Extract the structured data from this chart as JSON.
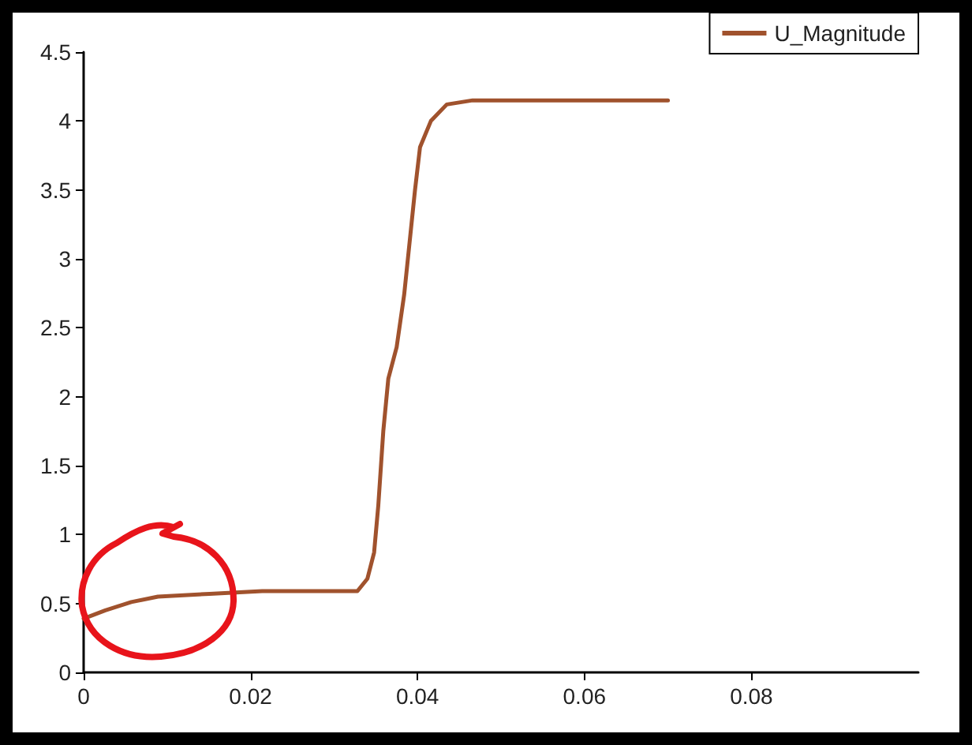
{
  "chart_data": {
    "type": "line",
    "x": [
      0,
      0.0026,
      0.0057,
      0.0089,
      0.0151,
      0.0214,
      0.0328,
      0.034,
      0.0348,
      0.0353,
      0.0359,
      0.0365,
      0.0375,
      0.0384,
      0.0397,
      0.0403,
      0.0416,
      0.0435,
      0.0466,
      0.07
    ],
    "series": [
      {
        "name": "U_Magnitude",
        "color": "#a0522d",
        "values": [
          0.39,
          0.45,
          0.51,
          0.55,
          0.57,
          0.59,
          0.59,
          0.68,
          0.87,
          1.21,
          1.75,
          2.13,
          2.36,
          2.74,
          3.5,
          3.81,
          4.0,
          4.12,
          4.15,
          4.15
        ]
      }
    ],
    "xlim": [
      0,
      0.1
    ],
    "xticks": [
      0,
      0.02,
      0.04,
      0.06,
      0.08
    ],
    "ylim": [
      0,
      4.5
    ],
    "yticks": [
      0,
      0.5,
      1,
      1.5,
      2,
      2.5,
      3,
      3.5,
      4,
      4.5
    ],
    "grid": false,
    "legend": "top right",
    "marker": "none",
    "line_style": "solid"
  }
}
